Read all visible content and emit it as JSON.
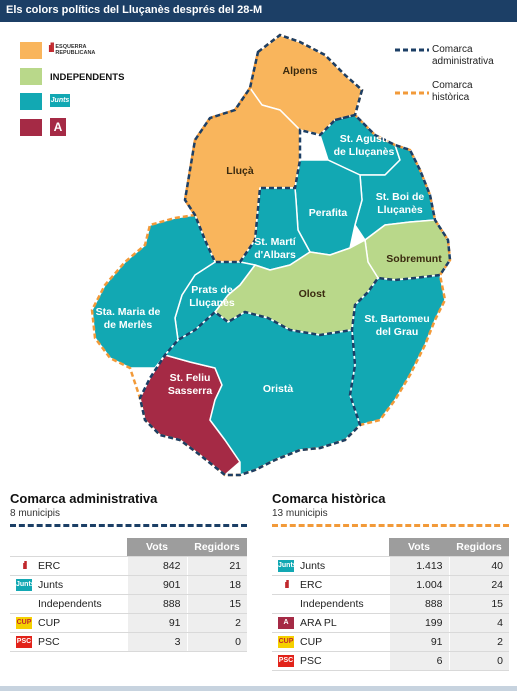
{
  "header": {
    "title": "Els colors polítics  del Lluçanès després del 28-M"
  },
  "colors": {
    "erc": "#f9b55c",
    "independents": "#b9d88a",
    "junts": "#12a8b3",
    "ara": "#a52a45",
    "admin_border": "#1c3f66",
    "historic_border": "#f29a39"
  },
  "legend": {
    "erc_logo": "ESQUERRA REPUBLICANA",
    "independents_label": "INDEPENDENTS",
    "junts_logo": "Junts",
    "ara_logo": "A"
  },
  "key": {
    "admin": "Comarca administrativa",
    "historic": "Comarca històrica"
  },
  "municipalities": {
    "alpens": "Alpens",
    "lluca": "Lluçà",
    "st_agusti": "St. Agustí de Lluçanès",
    "st_boi": "St. Boi de Lluçanès",
    "perafita": "Perafita",
    "st_marti": "St. Martí d'Albars",
    "sobremunt": "Sobremunt",
    "olost": "Olost",
    "prats": "Prats de Lluçanès",
    "sta_maria": "Sta. Maria de Merlès",
    "st_bartomeu": "St. Bartomeu del Grau",
    "st_feliu": "St. Feliu Sasserra",
    "orista": "Oristà"
  },
  "admin_section": {
    "title": "Comarca administrativa",
    "subtitle": "8 municipis",
    "headers": [
      "Vots",
      "Regidors"
    ],
    "rows": [
      {
        "party": "ERC",
        "icon": "erc-icon",
        "votes": "842",
        "seats": "21"
      },
      {
        "party": "Junts",
        "icon": "junts-icon",
        "votes": "901",
        "seats": "18"
      },
      {
        "party": "Independents",
        "icon": "",
        "votes": "888",
        "seats": "15"
      },
      {
        "party": "CUP",
        "icon": "cup-icon",
        "votes": "91",
        "seats": "2"
      },
      {
        "party": "PSC",
        "icon": "psc-icon",
        "votes": "3",
        "seats": "0"
      }
    ]
  },
  "historic_section": {
    "title": "Comarca històrica",
    "subtitle": "13 municipis",
    "headers": [
      "Vots",
      "Regidors"
    ],
    "rows": [
      {
        "party": "Junts",
        "icon": "junts-icon",
        "votes": "1.413",
        "seats": "40"
      },
      {
        "party": "ERC",
        "icon": "erc-icon",
        "votes": "1.004",
        "seats": "24"
      },
      {
        "party": "Independents",
        "icon": "",
        "votes": "888",
        "seats": "15"
      },
      {
        "party": "ARA PL",
        "icon": "ara-icon",
        "votes": "199",
        "seats": "4"
      },
      {
        "party": "CUP",
        "icon": "cup-icon",
        "votes": "91",
        "seats": "2"
      },
      {
        "party": "PSC",
        "icon": "psc-icon",
        "votes": "6",
        "seats": "0"
      }
    ]
  }
}
